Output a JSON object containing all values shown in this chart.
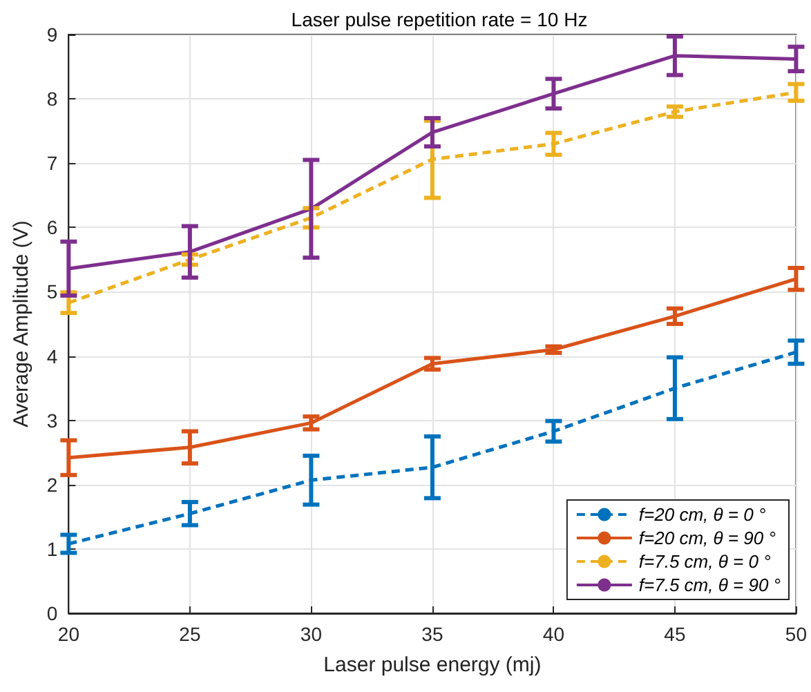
{
  "chart_data": {
    "type": "line",
    "title": "Laser pulse repetition rate = 10 Hz",
    "xlabel": "Laser pulse energy (mj)",
    "ylabel": "Average Amplitude (V)",
    "x": [
      20,
      25,
      30,
      35,
      40,
      45,
      50
    ],
    "xlim": [
      20,
      50
    ],
    "xticks": [
      20,
      25,
      30,
      35,
      40,
      45,
      50
    ],
    "ylim": [
      0,
      9
    ],
    "yticks": [
      0,
      1,
      2,
      3,
      4,
      5,
      6,
      7,
      8,
      9
    ],
    "grid": true,
    "legend": "bottom right",
    "marker": "none",
    "series": [
      {
        "name": "f=20 cm, θ = 0 °",
        "color": "#0072bd",
        "line_style": "dashed",
        "values": [
          1.08,
          1.55,
          2.07,
          2.27,
          2.83,
          3.5,
          4.06
        ],
        "errors": [
          0.14,
          0.18,
          0.38,
          0.48,
          0.16,
          0.48,
          0.18
        ]
      },
      {
        "name": "f=20 cm, θ = 90 °",
        "color": "#d95319",
        "line_style": "solid",
        "values": [
          2.42,
          2.58,
          2.96,
          3.88,
          4.1,
          4.62,
          5.2
        ],
        "errors": [
          0.27,
          0.25,
          0.1,
          0.09,
          0.05,
          0.12,
          0.17
        ]
      },
      {
        "name": "f=7.5 cm, θ = 0 °",
        "color": "#edb120",
        "line_style": "dashed",
        "values": [
          4.83,
          5.5,
          6.15,
          7.06,
          7.3,
          7.8,
          8.1
        ],
        "errors": [
          0.16,
          0.08,
          0.15,
          0.6,
          0.17,
          0.08,
          0.13
        ]
      },
      {
        "name": "f=7.5 cm, θ = 90 °",
        "color": "#7e2f8e",
        "line_style": "solid",
        "values": [
          5.36,
          5.62,
          6.29,
          7.48,
          8.08,
          8.67,
          8.62
        ],
        "errors": [
          0.42,
          0.4,
          0.76,
          0.22,
          0.23,
          0.3,
          0.19
        ]
      }
    ]
  }
}
